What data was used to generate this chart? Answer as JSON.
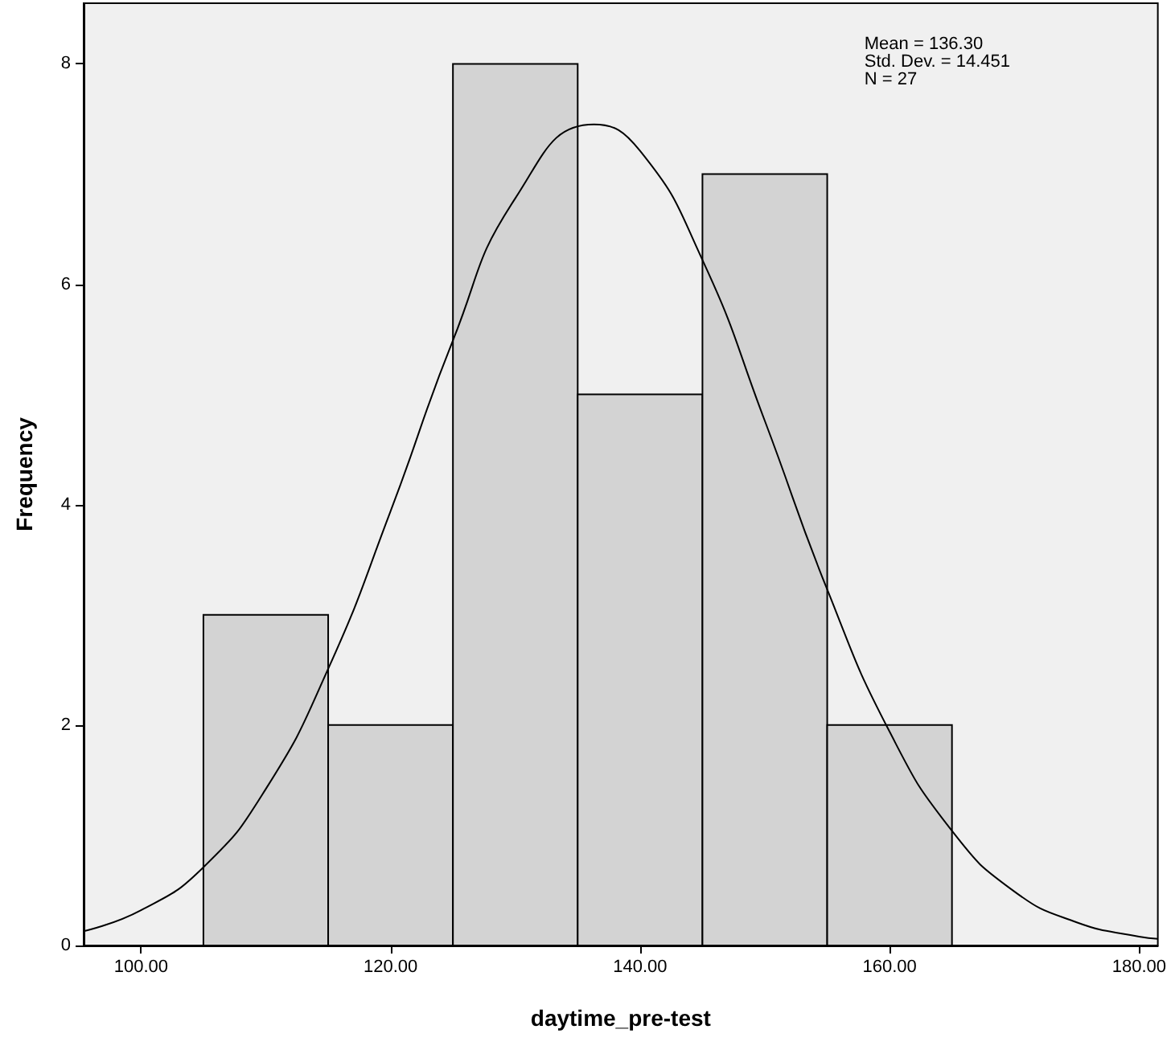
{
  "chart_data": {
    "type": "histogram",
    "xlabel": "daytime_pre-test",
    "ylabel": "Frequency",
    "bins": [
      105,
      115,
      125,
      135,
      145,
      155,
      165
    ],
    "values": [
      3,
      2,
      8,
      5,
      7,
      2
    ],
    "color": "#d3d3d3",
    "series": [
      {
        "type": "line",
        "color": "#000000",
        "x": [
          95.4,
          100,
          105,
          110,
          115,
          120,
          125,
          130,
          136.3,
          140,
          145,
          150,
          155,
          160,
          165,
          170,
          175,
          180,
          181.5
        ],
        "values": [
          0.13,
          0.32,
          0.71,
          1.42,
          2.51,
          3.94,
          5.49,
          6.78,
          7.45,
          7.21,
          6.22,
          4.76,
          3.23,
          1.94,
          1.04,
          0.49,
          0.21,
          0.08,
          0.06
        ]
      }
    ],
    "xlim": [
      95.4,
      181.5
    ],
    "xticks": [
      {
        "value": 100,
        "label": "100.00"
      },
      {
        "value": 120,
        "label": "120.00"
      },
      {
        "value": 140,
        "label": "140.00"
      },
      {
        "value": 160,
        "label": "160.00"
      },
      {
        "value": 180,
        "label": "180.00"
      }
    ],
    "ylim": [
      0,
      8.55
    ],
    "yticks": [
      0,
      2,
      4,
      6,
      8
    ],
    "annotations": [
      "Mean = 136.30",
      "Std. Dev. = 14.451",
      "N = 27"
    ],
    "grid": false,
    "marker": "none"
  }
}
